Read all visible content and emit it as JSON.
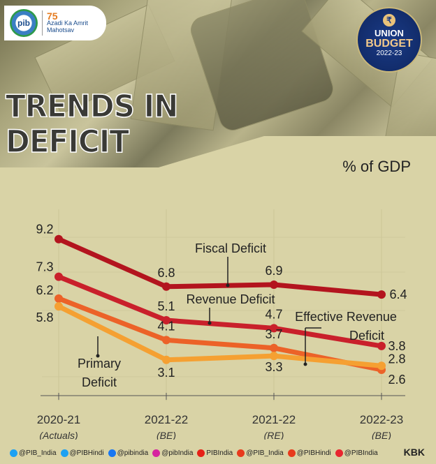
{
  "header": {
    "pib_logo": "pib",
    "azadi_number": "75",
    "azadi_text": "Azadi Ka Amrit Mahotsav",
    "badge_symbol": "₹",
    "badge_line1": "UNION",
    "badge_line2": "BUDGET",
    "badge_year": "2022-23",
    "title_line1": "TRENDS IN",
    "title_line2": "DEFICIT",
    "unit": "% of GDP"
  },
  "chart_data": {
    "type": "line",
    "categories": [
      "2020-21",
      "2021-22",
      "2021-22",
      "2022-23"
    ],
    "subcategories": [
      "(Actuals)",
      "(BE)",
      "(RE)",
      "(BE)"
    ],
    "ylabel": "% of GDP",
    "ylim": [
      2,
      10
    ],
    "grid": true,
    "series": [
      {
        "name": "Fiscal Deficit",
        "values": [
          9.2,
          6.8,
          6.9,
          6.4
        ],
        "color": "#b3141e"
      },
      {
        "name": "Revenue Deficit",
        "values": [
          7.3,
          5.1,
          4.7,
          3.8
        ],
        "color": "#c9202b"
      },
      {
        "name": "Effective Revenue Deficit",
        "values": [
          6.2,
          4.1,
          3.7,
          2.6
        ],
        "color": "#ec6228"
      },
      {
        "name": "Primary Deficit",
        "values": [
          5.8,
          3.1,
          3.3,
          2.8
        ],
        "color": "#f5a032"
      }
    ]
  },
  "footer": {
    "items": [
      {
        "icon": "twitter-icon",
        "label": "@PIB_India",
        "color": "#1da1f2"
      },
      {
        "icon": "twitter-icon",
        "label": "@PIBHindi",
        "color": "#1da1f2"
      },
      {
        "icon": "facebook-icon",
        "label": "@pibindia",
        "color": "#1877f2"
      },
      {
        "icon": "instagram-icon",
        "label": "@pibIndia",
        "color": "#d6249f"
      },
      {
        "icon": "youtube-icon",
        "label": "PIBIndia",
        "color": "#e62117"
      },
      {
        "icon": "kooapp-icon",
        "label": "@PIB_India",
        "color": "#e83a1c"
      },
      {
        "icon": "kooapp-icon",
        "label": "@PIBHindi",
        "color": "#e83a1c"
      },
      {
        "icon": "sharechat-icon",
        "label": "@PIBIndia",
        "color": "#e8262f"
      }
    ],
    "credit": "KBK"
  }
}
